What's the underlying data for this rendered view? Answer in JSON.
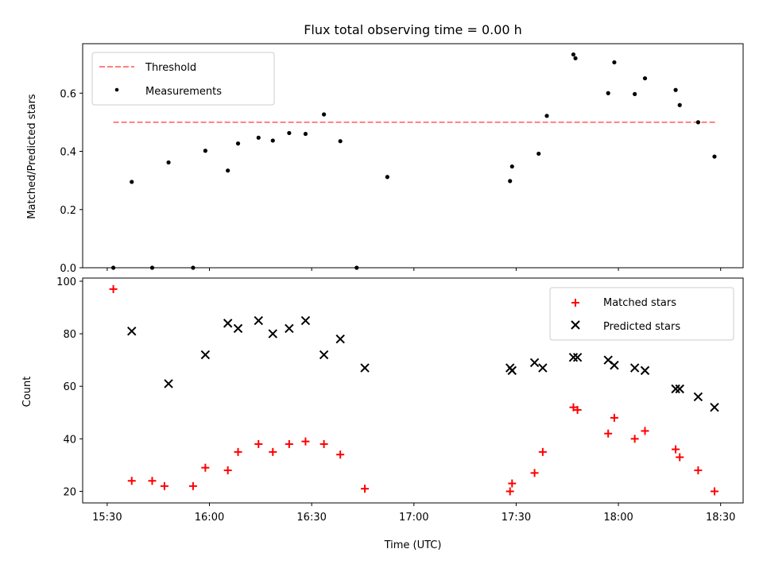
{
  "chart_data": [
    {
      "type": "scatter",
      "title": "Flux total observing time = 0.00 h",
      "ylabel": "Matched/Predicted stars",
      "xlabel": "",
      "ylim": [
        0.0,
        0.77
      ],
      "yticks": [
        0.0,
        0.2,
        0.4,
        0.6
      ],
      "ytick_labels": [
        "0.0",
        "0.2",
        "0.4",
        "0.6"
      ],
      "xlim": [
        15.38,
        18.61
      ],
      "xticks": [
        15.5,
        16.0,
        16.5,
        17.0,
        17.5,
        18.0,
        18.5
      ],
      "legend_position": "top-left",
      "threshold": {
        "name": "Threshold",
        "value": 0.5,
        "x_start": 15.53,
        "x_end": 18.48,
        "color": "#ff7f7f"
      },
      "series": [
        {
          "name": "Measurements",
          "color": "#000000",
          "marker": "dot",
          "x": [
            15.53,
            15.62,
            15.72,
            15.8,
            15.92,
            15.98,
            16.09,
            16.14,
            16.24,
            16.31,
            16.39,
            16.47,
            16.56,
            16.64,
            16.72,
            16.87,
            17.47,
            17.48,
            17.61,
            17.65,
            17.78,
            17.79,
            17.95,
            17.98,
            18.08,
            18.13,
            18.28,
            18.3,
            18.39,
            18.47
          ],
          "y": [
            0.0,
            0.295,
            0.0,
            0.362,
            0.0,
            0.402,
            0.334,
            0.427,
            0.447,
            0.437,
            0.463,
            0.46,
            0.527,
            0.435,
            0.0,
            0.312,
            0.298,
            0.348,
            0.392,
            0.522,
            0.733,
            0.72,
            0.6,
            0.706,
            0.597,
            0.651,
            0.611,
            0.559,
            0.5,
            0.382
          ]
        }
      ]
    },
    {
      "type": "scatter",
      "title": "",
      "xlabel": "Time (UTC)",
      "ylabel": "Count",
      "ylim": [
        15.6,
        101.2
      ],
      "yticks": [
        20,
        40,
        60,
        80,
        100
      ],
      "ytick_labels": [
        "20",
        "40",
        "60",
        "80",
        "100"
      ],
      "xlim": [
        15.38,
        18.61
      ],
      "xticks": [
        15.5,
        16.0,
        16.5,
        17.0,
        17.5,
        18.0,
        18.5
      ],
      "xtick_labels": [
        "15:30",
        "16:00",
        "16:30",
        "17:00",
        "17:30",
        "18:00",
        "18:30"
      ],
      "legend_position": "top-right",
      "series": [
        {
          "name": "Matched stars",
          "color": "#ff0000",
          "marker": "plus",
          "x": [
            15.53,
            15.62,
            15.72,
            15.78,
            15.92,
            15.98,
            16.09,
            16.14,
            16.24,
            16.31,
            16.39,
            16.47,
            16.56,
            16.64,
            16.76,
            17.47,
            17.48,
            17.59,
            17.63,
            17.78,
            17.8,
            17.95,
            17.98,
            18.08,
            18.13,
            18.28,
            18.3,
            18.39,
            18.47
          ],
          "y": [
            97,
            24,
            24,
            22,
            22,
            29,
            28,
            35,
            38,
            35,
            38,
            39,
            38,
            34,
            21,
            20,
            23,
            27,
            35,
            52,
            51,
            42,
            48,
            40,
            43,
            36,
            33,
            28,
            20
          ]
        },
        {
          "name": "Predicted stars",
          "color": "#000000",
          "marker": "x",
          "x": [
            15.62,
            15.8,
            15.98,
            16.09,
            16.14,
            16.24,
            16.31,
            16.39,
            16.47,
            16.56,
            16.64,
            16.76,
            17.47,
            17.48,
            17.59,
            17.63,
            17.78,
            17.8,
            17.95,
            17.98,
            18.08,
            18.13,
            18.28,
            18.3,
            18.39,
            18.47
          ],
          "y": [
            81,
            61,
            72,
            84,
            82,
            85,
            80,
            82,
            85,
            72,
            78,
            67,
            67,
            66,
            69,
            67,
            71,
            71,
            70,
            68,
            67,
            66,
            59,
            59,
            56,
            52
          ]
        }
      ]
    }
  ]
}
